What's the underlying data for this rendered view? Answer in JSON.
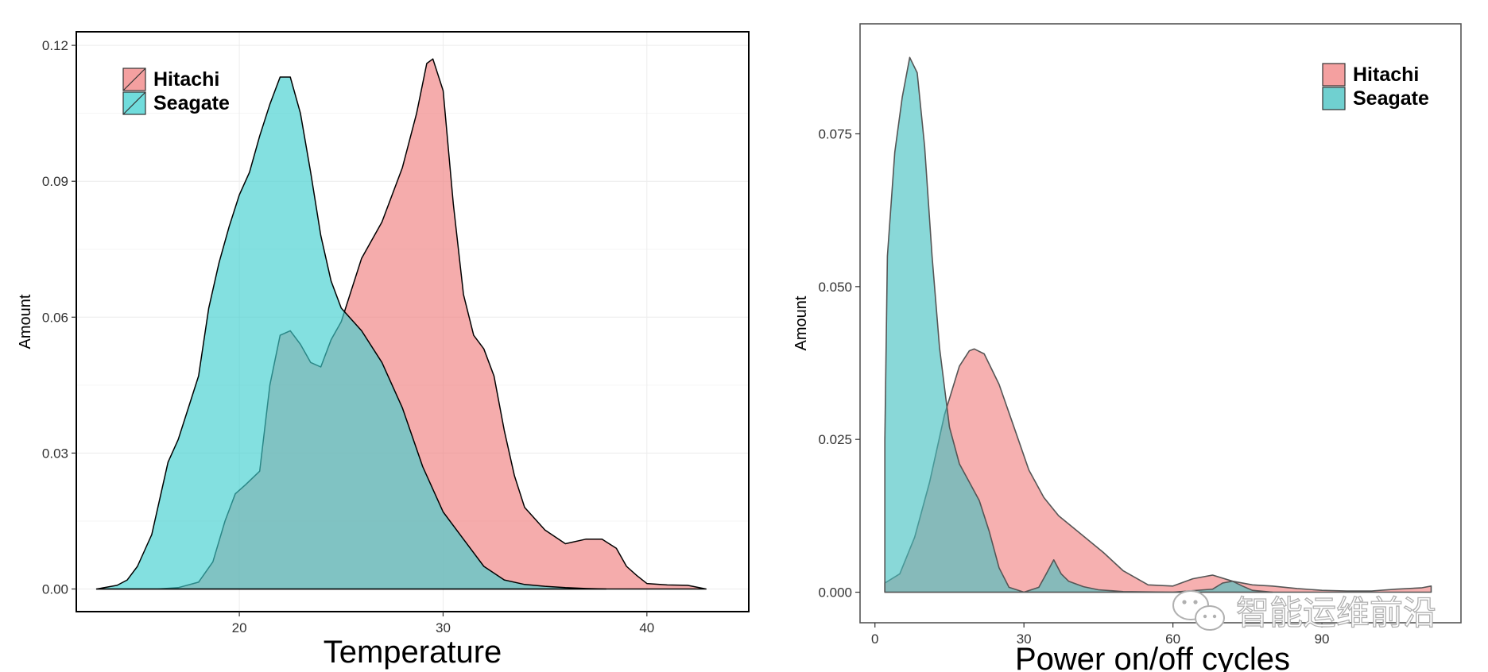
{
  "chart_data": [
    {
      "type": "area",
      "title": "",
      "xlabel": "Temperature",
      "ylabel": "Amount",
      "xlim": [
        12,
        45
      ],
      "ylim": [
        -0.005,
        0.123
      ],
      "xticks": [
        20,
        30,
        40
      ],
      "yticks": [
        0.0,
        0.03,
        0.06,
        0.09,
        0.12
      ],
      "ytick_labels": [
        "0.00",
        "0.03",
        "0.06",
        "0.09",
        "0.12"
      ],
      "legend_position": "top-left",
      "grid": true,
      "series": [
        {
          "name": "Hitachi",
          "color": "#F08080",
          "x": [
            13,
            14,
            15,
            16,
            17,
            18,
            18.7,
            19.3,
            19.8,
            20.3,
            21,
            21.5,
            22,
            22.5,
            23,
            23.5,
            24,
            24.5,
            25,
            26,
            27,
            28,
            28.7,
            29.2,
            29.5,
            30,
            30.5,
            31,
            31.5,
            32,
            32.5,
            33,
            33.5,
            34,
            35,
            36,
            37,
            37.8,
            38.5,
            39,
            39.5,
            40,
            41,
            42,
            42.9
          ],
          "y": [
            0,
            0,
            0,
            0,
            0.0003,
            0.0015,
            0.006,
            0.015,
            0.021,
            0.023,
            0.026,
            0.045,
            0.056,
            0.057,
            0.054,
            0.05,
            0.049,
            0.055,
            0.059,
            0.073,
            0.081,
            0.093,
            0.105,
            0.116,
            0.117,
            0.11,
            0.085,
            0.065,
            0.056,
            0.053,
            0.047,
            0.035,
            0.025,
            0.018,
            0.013,
            0.01,
            0.011,
            0.011,
            0.009,
            0.005,
            0.003,
            0.0012,
            0.0009,
            0.0008,
            0
          ]
        },
        {
          "name": "Seagate",
          "color": "#40D0D0",
          "x": [
            13,
            14,
            14.5,
            15,
            15.7,
            16.5,
            17,
            17.5,
            18,
            18.5,
            19,
            19.5,
            20,
            20.5,
            21,
            21.5,
            22,
            22.5,
            23,
            23.5,
            24,
            24.5,
            25,
            26,
            27,
            28,
            29,
            30,
            31,
            32,
            33,
            34,
            35,
            36,
            37,
            38
          ],
          "y": [
            0,
            0.0008,
            0.002,
            0.005,
            0.012,
            0.028,
            0.033,
            0.04,
            0.047,
            0.062,
            0.072,
            0.08,
            0.087,
            0.092,
            0.1,
            0.107,
            0.113,
            0.113,
            0.105,
            0.092,
            0.078,
            0.068,
            0.062,
            0.057,
            0.05,
            0.04,
            0.027,
            0.017,
            0.011,
            0.005,
            0.002,
            0.001,
            0.0006,
            0.0003,
            0.0001,
            0
          ]
        }
      ]
    },
    {
      "type": "area",
      "title": "",
      "xlabel": "Power on/off cycles",
      "ylabel": "Amount",
      "xlim": [
        -3,
        118
      ],
      "ylim": [
        -0.005,
        0.093
      ],
      "xticks": [
        0,
        30,
        60,
        90
      ],
      "yticks": [
        0.0,
        0.025,
        0.05,
        0.075
      ],
      "ytick_labels": [
        "0.000",
        "0.025",
        "0.050",
        "0.075"
      ],
      "legend_position": "top-right",
      "grid": false,
      "series": [
        {
          "name": "Hitachi",
          "color": "#F08080",
          "x": [
            2,
            5,
            8,
            11,
            14,
            17,
            19,
            20,
            22,
            25,
            28,
            31,
            34,
            37,
            40,
            43,
            46,
            50,
            55,
            60,
            64,
            68,
            72,
            76,
            80,
            85,
            90,
            95,
            100,
            105,
            110,
            112,
            112
          ],
          "y": [
            0.0015,
            0.003,
            0.009,
            0.018,
            0.029,
            0.037,
            0.0395,
            0.0398,
            0.039,
            0.034,
            0.027,
            0.02,
            0.0155,
            0.0125,
            0.0105,
            0.0085,
            0.0065,
            0.0035,
            0.0012,
            0.001,
            0.0022,
            0.0028,
            0.0018,
            0.0012,
            0.001,
            0.0006,
            0.0003,
            0.0002,
            0.0002,
            0.0005,
            0.0007,
            0.001,
            0
          ]
        },
        {
          "name": "Seagate",
          "color": "#40C0C0",
          "x": [
            2,
            2.5,
            4,
            5.5,
            7,
            8.5,
            10,
            11.5,
            13,
            15,
            17,
            19,
            21,
            23,
            25,
            27,
            30,
            33,
            34.5,
            36,
            37.5,
            39,
            42,
            45,
            50,
            60,
            68,
            70,
            72,
            74,
            76,
            80
          ],
          "y": [
            0.025,
            0.055,
            0.072,
            0.081,
            0.0875,
            0.085,
            0.073,
            0.055,
            0.04,
            0.027,
            0.021,
            0.018,
            0.015,
            0.01,
            0.004,
            0.0008,
            0,
            0.0008,
            0.003,
            0.0053,
            0.003,
            0.0018,
            0.0009,
            0.0004,
            0.0001,
            0,
            0.0005,
            0.0015,
            0.0018,
            0.001,
            0.0003,
            0
          ]
        }
      ]
    }
  ],
  "watermark": {
    "text": "智能运维前沿",
    "icon": "wechat-icon"
  }
}
